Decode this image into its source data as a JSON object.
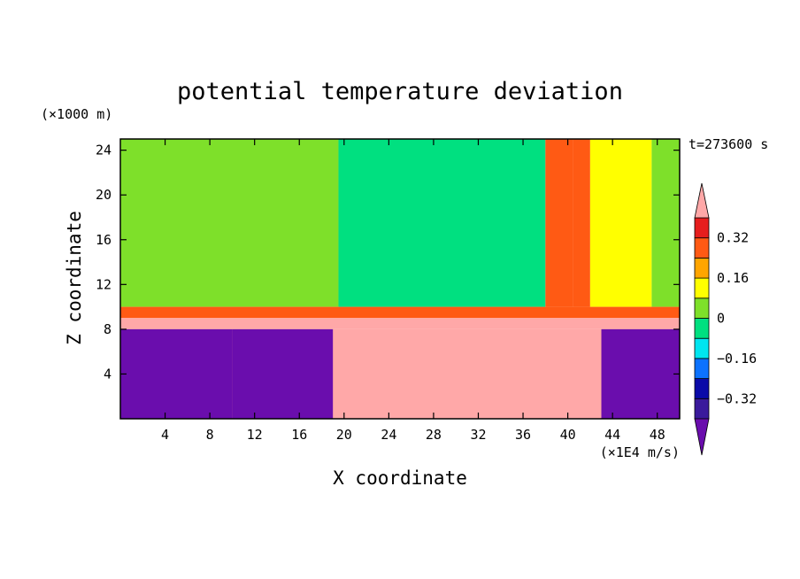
{
  "chart_data": {
    "type": "heatmap",
    "title": "potential temperature deviation",
    "xlabel": "X coordinate",
    "ylabel": "Z coordinate",
    "x_unit": "(×1E4 m/s)",
    "y_unit": "(×1000 m)",
    "time_label": "t=273600 s",
    "xlim": [
      0,
      50
    ],
    "ylim": [
      0,
      25
    ],
    "x_ticks": [
      4,
      8,
      12,
      16,
      20,
      24,
      28,
      32,
      36,
      40,
      44,
      48
    ],
    "y_ticks": [
      4,
      8,
      12,
      16,
      20,
      24
    ],
    "colorbar": {
      "levels": [
        -0.4,
        -0.32,
        -0.24,
        -0.16,
        -0.08,
        0,
        0.08,
        0.16,
        0.24,
        0.32,
        0.4
      ],
      "tick_values": [
        0.32,
        0.16,
        0,
        -0.16,
        -0.32
      ],
      "tick_labels": [
        "0.32",
        "0.16",
        "0",
        "−0.16",
        "−0.32"
      ],
      "colors": [
        "#6a0dad",
        "#3a1a9c",
        "#0a0aa8",
        "#0c72ff",
        "#00e5f0",
        "#00e080",
        "#7ee02a",
        "#ffff00",
        "#ffa500",
        "#ff5a14",
        "#e61e1e",
        "#ffa8a8"
      ],
      "extend": "both"
    },
    "regions": [
      {
        "x": [
          0,
          19.5
        ],
        "z": [
          10,
          25
        ],
        "value": 0.04
      },
      {
        "x": [
          19.5,
          38
        ],
        "z": [
          10,
          25
        ],
        "value": -0.05
      },
      {
        "x": [
          38,
          40.5
        ],
        "z": [
          10,
          25
        ],
        "value": 0.3
      },
      {
        "x": [
          40.5,
          42
        ],
        "z": [
          10,
          25
        ],
        "value": 0.24
      },
      {
        "x": [
          42,
          47.5
        ],
        "z": [
          10,
          25
        ],
        "value": 0.13
      },
      {
        "x": [
          47.5,
          50
        ],
        "z": [
          10,
          25
        ],
        "value": 0.04
      },
      {
        "x": [
          0,
          50
        ],
        "z": [
          9,
          10
        ],
        "value": 0.28
      },
      {
        "x": [
          0,
          50
        ],
        "z": [
          8,
          9
        ],
        "value": 0.42
      },
      {
        "x": [
          0,
          50
        ],
        "z": [
          0,
          8
        ],
        "value": 0.42
      },
      {
        "x": [
          0,
          10
        ],
        "z": [
          0,
          8
        ],
        "value": -0.42
      },
      {
        "x": [
          10,
          19
        ],
        "z": [
          0,
          8
        ],
        "value": -0.42
      },
      {
        "x": [
          43,
          50
        ],
        "z": [
          0,
          8
        ],
        "value": -0.42
      }
    ]
  }
}
